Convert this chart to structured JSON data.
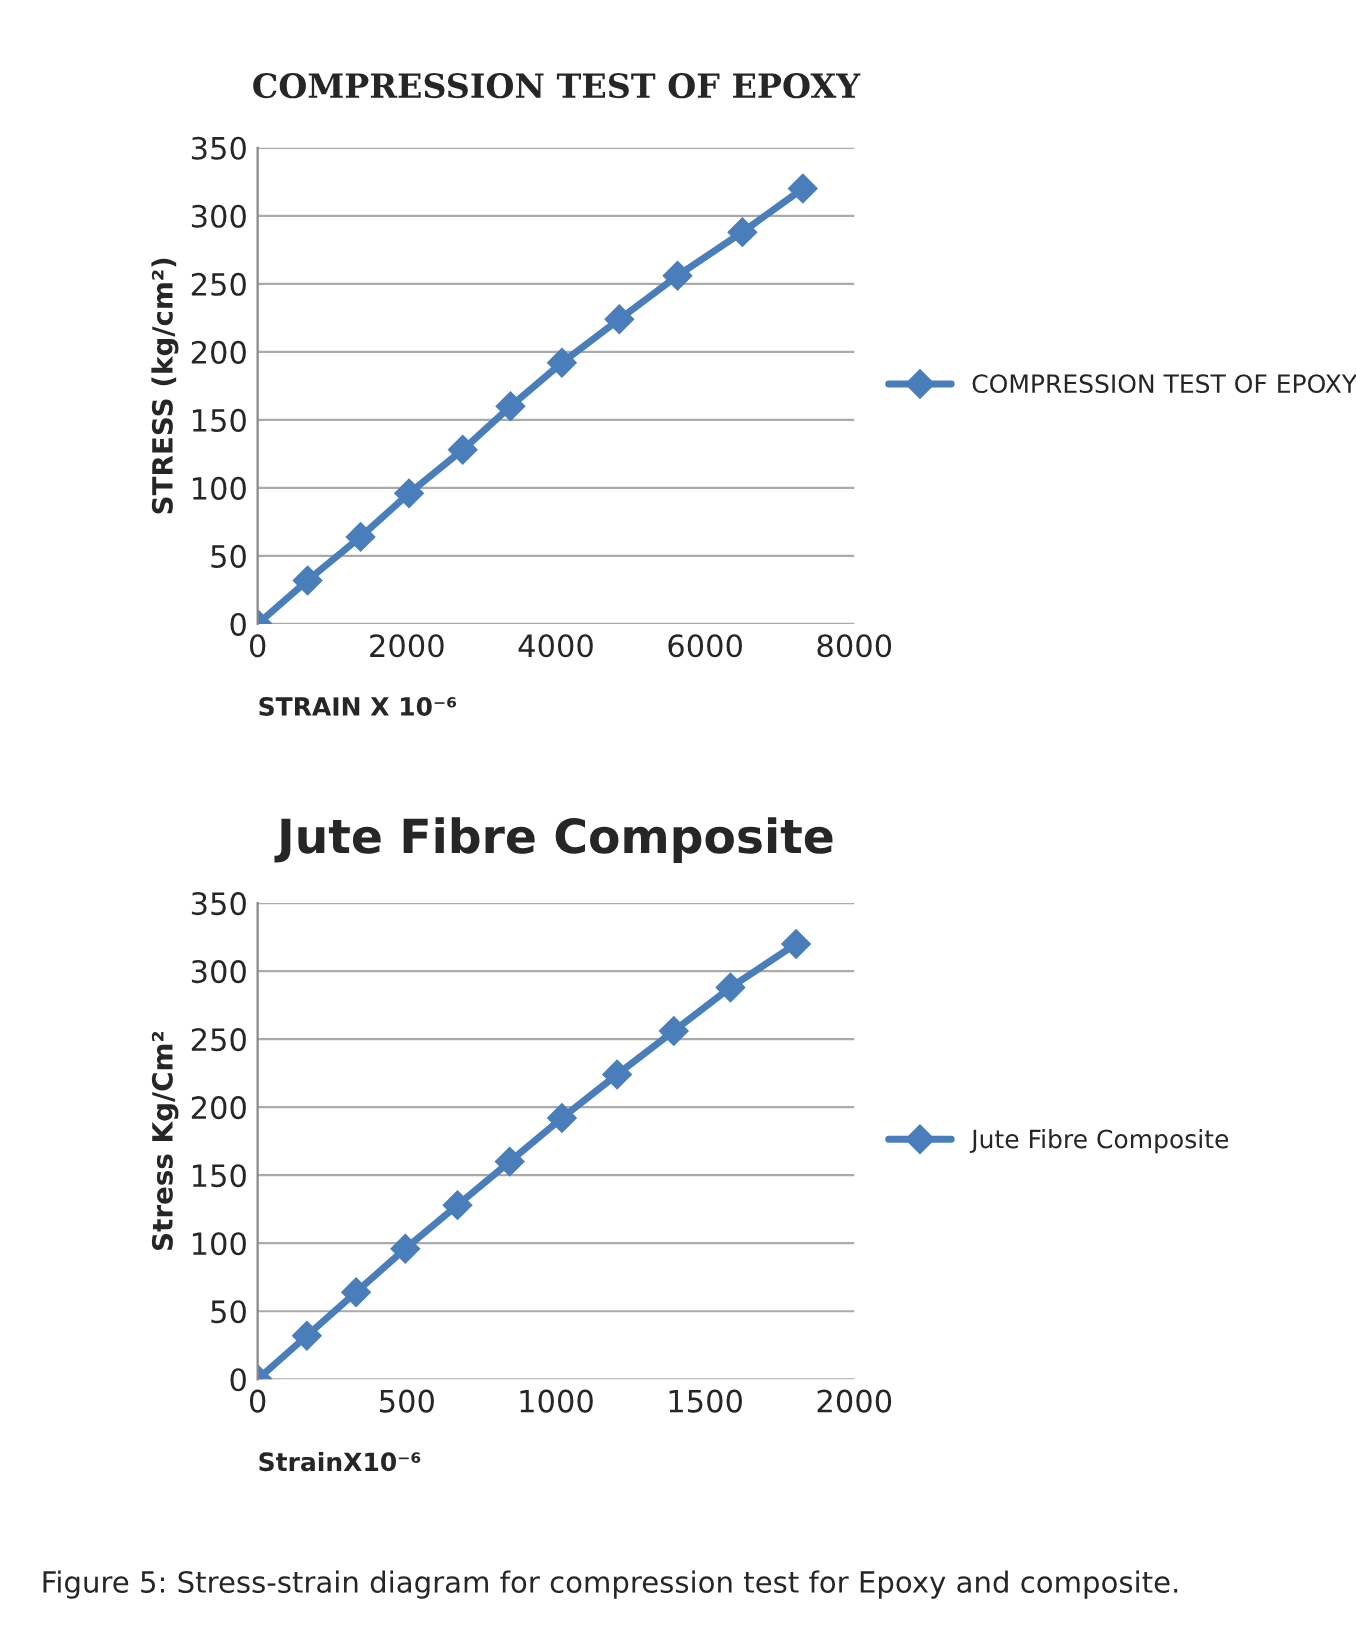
{
  "chart_data": [
    {
      "type": "line",
      "title": "COMPRESSION TEST OF EPOXY",
      "xlabel": "STRAIN X 10⁻⁶",
      "ylabel": "STRESS (kg/cm²)",
      "series": [
        {
          "name": "COMPRESSION TEST OF EPOXY",
          "color": "#4a7ebb",
          "x": [
            0,
            670,
            1380,
            2030,
            2750,
            3390,
            4080,
            4850,
            5630,
            6500,
            7310
          ],
          "values": [
            0,
            32,
            64,
            96,
            128,
            160,
            192,
            224,
            256,
            288,
            320
          ]
        }
      ],
      "xlim": [
        0,
        8000
      ],
      "xticks": [
        0,
        2000,
        4000,
        6000,
        8000
      ],
      "ylim": [
        0,
        350
      ],
      "yticks": [
        0,
        50,
        100,
        150,
        200,
        250,
        300,
        350
      ],
      "grid": "y",
      "legend": "right",
      "marker": "diamond",
      "line_style": "solid"
    },
    {
      "type": "line",
      "title": "Jute Fibre Composite",
      "xlabel": "StrainX10⁻⁶",
      "ylabel": "Stress Kg/Cm²",
      "series": [
        {
          "name": "Jute Fibre Composite",
          "color": "#4a7ebb",
          "x": [
            0,
            165,
            330,
            495,
            670,
            845,
            1020,
            1205,
            1395,
            1585,
            1805
          ],
          "values": [
            0,
            32,
            64,
            96,
            128,
            160,
            192,
            224,
            256,
            288,
            320
          ]
        }
      ],
      "xlim": [
        0,
        2000
      ],
      "xticks": [
        0,
        500,
        1000,
        1500,
        2000
      ],
      "ylim": [
        0,
        350
      ],
      "yticks": [
        0,
        50,
        100,
        150,
        200,
        250,
        300,
        350
      ],
      "grid": "y",
      "legend": "right",
      "marker": "diamond",
      "line_style": "solid",
      "annotations": [
        "Figure 5: Stress-strain diagram for compression test for Epoxy and composite."
      ]
    }
  ]
}
